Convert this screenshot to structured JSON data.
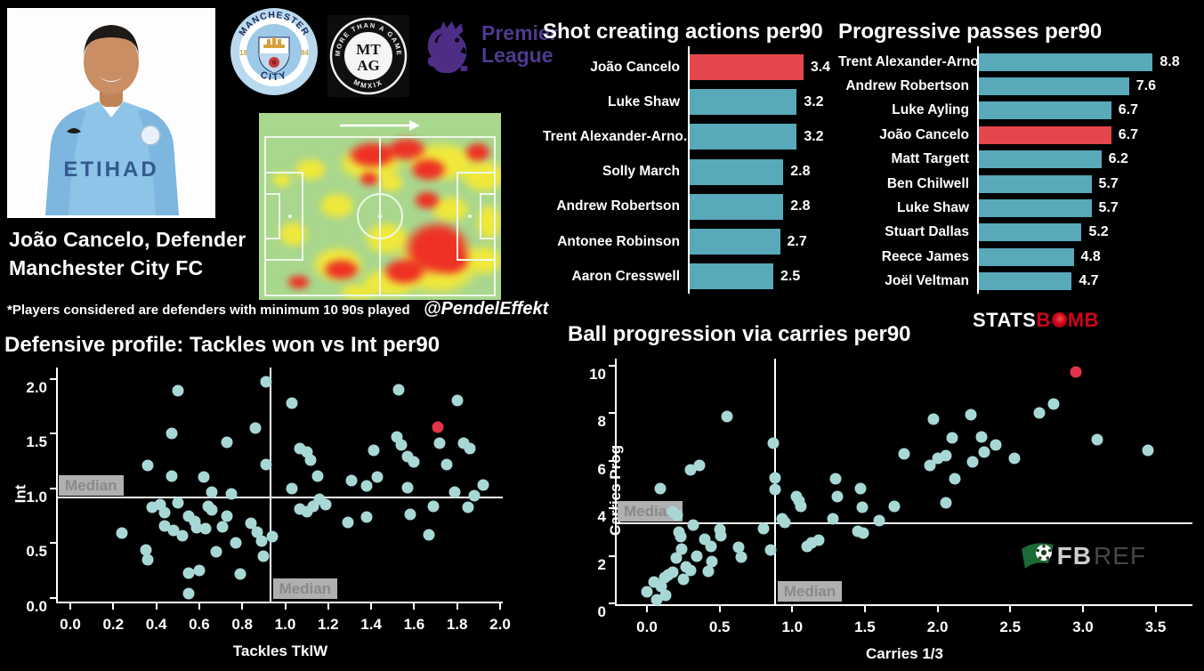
{
  "header": {
    "name": "João Cancelo, Defender",
    "team": "Manchester City FC",
    "footnote": "*Players considered are defenders with minimum 10 90s played",
    "watermark": "@PendelEffekt",
    "jersey_text": "ETIHAD"
  },
  "logos": {
    "mancity": {
      "top": "MANCHESTER",
      "bottom": "CITY",
      "year_left": "18",
      "year_right": "94"
    },
    "mtag": {
      "arc_top": "MORE THAN A GAME",
      "line1": "MT",
      "line2": "AG",
      "arc_bottom": "MMXIX"
    },
    "premier_league": {
      "line1": "Premier",
      "line2": "League"
    },
    "statsbomb": {
      "part1": "STATS",
      "part2": "B",
      "part3": "MB"
    },
    "fbref": {
      "part1": "FB",
      "part2": "REF"
    }
  },
  "colors": {
    "bar_teal": "#58a9ba",
    "bar_red": "#e4464b",
    "dot_cyan": "#a8d8d6",
    "dot_red": "#e0344a",
    "axis_white": "#ffffff",
    "median_box_bg": "#b0b0b0",
    "median_box_text": "#8a8a8a",
    "pl_purple": "#4e2d87",
    "statsbomb_red": "#d0021b",
    "fbref_green": "#1b6b35",
    "heat_green": "#a9d78e",
    "heat_yellow": "#f0e83a",
    "heat_red": "#ee3124"
  },
  "chart_data": [
    {
      "id": "sca",
      "type": "bar",
      "title": "Shot creating actions per90",
      "categories": [
        "João Cancelo",
        "Luke Shaw",
        "Trent Alexander-Arno..",
        "Solly March",
        "Andrew Robertson",
        "Antonee Robinson",
        "Aaron Cresswell"
      ],
      "values": [
        3.4,
        3.2,
        3.2,
        2.8,
        2.8,
        2.7,
        2.5
      ],
      "highlight_index": 0,
      "xlim": [
        0,
        3.55
      ]
    },
    {
      "id": "prog_passes",
      "type": "bar",
      "title": "Progressive passes per90",
      "categories": [
        "Trent Alexander-Arno..",
        "Andrew Robertson",
        "Luke Ayling",
        "João Cancelo",
        "Matt Targett",
        "Ben Chilwell",
        "Luke Shaw",
        "Stuart Dallas",
        "Reece James",
        "Joël Veltman"
      ],
      "values": [
        8.8,
        7.6,
        6.7,
        6.7,
        6.2,
        5.7,
        5.7,
        5.2,
        4.8,
        4.7
      ],
      "highlight_index": 3,
      "xlim": [
        0,
        9.0
      ]
    },
    {
      "id": "defensive",
      "type": "scatter",
      "title": "Defensive profile: Tackles won vs Int per90",
      "xlabel": "Tackles TklW",
      "ylabel": "Int",
      "xlim": [
        0,
        2.0
      ],
      "ylim": [
        0,
        2.0
      ],
      "xticks": [
        "0.0",
        "0.2",
        "0.4",
        "0.6",
        "0.8",
        "1.0",
        "1.2",
        "1.4",
        "1.6",
        "1.8",
        "2.0"
      ],
      "yticks": [
        "0.0",
        "0.5",
        "1.0",
        "1.5",
        "2.0"
      ],
      "median_x": 0.93,
      "median_y": 0.92,
      "median_label": "Median",
      "highlight": [
        1.71,
        1.56
      ],
      "points": [
        [
          0.5,
          1.89
        ],
        [
          0.91,
          1.97
        ],
        [
          1.03,
          1.78
        ],
        [
          1.53,
          1.9
        ],
        [
          1.8,
          1.8
        ],
        [
          0.47,
          1.5
        ],
        [
          0.73,
          1.42
        ],
        [
          0.86,
          1.55
        ],
        [
          0.91,
          1.22
        ],
        [
          0.36,
          1.21
        ],
        [
          0.47,
          1.11
        ],
        [
          0.62,
          1.1
        ],
        [
          0.66,
          0.97
        ],
        [
          0.75,
          0.95
        ],
        [
          0.42,
          0.85
        ],
        [
          0.38,
          0.83
        ],
        [
          0.44,
          0.78
        ],
        [
          0.5,
          0.87
        ],
        [
          0.44,
          0.66
        ],
        [
          0.48,
          0.62
        ],
        [
          0.52,
          0.57
        ],
        [
          0.55,
          0.75
        ],
        [
          0.58,
          0.7
        ],
        [
          0.59,
          0.64
        ],
        [
          0.63,
          0.63
        ],
        [
          0.64,
          0.84
        ],
        [
          0.66,
          0.8
        ],
        [
          0.68,
          0.42
        ],
        [
          0.71,
          0.65
        ],
        [
          0.73,
          0.75
        ],
        [
          0.24,
          0.59
        ],
        [
          0.35,
          0.44
        ],
        [
          0.36,
          0.35
        ],
        [
          0.55,
          0.23
        ],
        [
          0.6,
          0.25
        ],
        [
          0.55,
          0.04
        ],
        [
          0.77,
          0.5
        ],
        [
          0.79,
          0.22
        ],
        [
          0.84,
          0.68
        ],
        [
          0.87,
          0.6
        ],
        [
          0.89,
          0.52
        ],
        [
          0.9,
          0.38
        ],
        [
          0.94,
          0.56
        ],
        [
          1.07,
          1.36
        ],
        [
          1.1,
          1.33
        ],
        [
          1.12,
          1.26
        ],
        [
          1.15,
          1.11
        ],
        [
          1.41,
          1.35
        ],
        [
          1.52,
          1.47
        ],
        [
          1.54,
          1.4
        ],
        [
          1.57,
          1.29
        ],
        [
          1.6,
          1.24
        ],
        [
          1.72,
          1.41
        ],
        [
          1.75,
          1.22
        ],
        [
          1.83,
          1.41
        ],
        [
          1.86,
          1.36
        ],
        [
          1.31,
          1.07
        ],
        [
          1.38,
          1.02
        ],
        [
          1.43,
          1.1
        ],
        [
          1.57,
          1.01
        ],
        [
          1.92,
          1.03
        ],
        [
          1.03,
          1.0
        ],
        [
          1.07,
          0.81
        ],
        [
          1.1,
          0.79
        ],
        [
          1.13,
          0.84
        ],
        [
          1.16,
          0.9
        ],
        [
          1.19,
          0.85
        ],
        [
          1.29,
          0.69
        ],
        [
          1.38,
          0.74
        ],
        [
          1.58,
          0.76
        ],
        [
          1.67,
          0.58
        ],
        [
          1.69,
          0.84
        ],
        [
          1.79,
          0.97
        ],
        [
          1.85,
          0.83
        ],
        [
          1.88,
          0.93
        ]
      ]
    },
    {
      "id": "carries",
      "type": "scatter",
      "title": "Ball progression via carries per90",
      "xlabel": "Carries 1/3",
      "ylabel": "Carries Prog",
      "xlim": [
        0,
        3.5
      ],
      "ylim": [
        0,
        10
      ],
      "xticks": [
        "0.0",
        "0.5",
        "1.0",
        "1.5",
        "2.0",
        "2.5",
        "3.0",
        "3.5"
      ],
      "yticks": [
        "0",
        "2",
        "4",
        "6",
        "8",
        "10"
      ],
      "median_x": 0.88,
      "median_y": 3.37,
      "median_label": "Median",
      "highlight": [
        2.95,
        9.75
      ],
      "points": [
        [
          0.0,
          0.5
        ],
        [
          0.05,
          0.9
        ],
        [
          0.07,
          0.15
        ],
        [
          0.1,
          0.7
        ],
        [
          0.12,
          1.1
        ],
        [
          0.13,
          0.35
        ],
        [
          0.15,
          1.2
        ],
        [
          0.18,
          1.3
        ],
        [
          0.2,
          1.9
        ],
        [
          0.22,
          3.0
        ],
        [
          0.23,
          2.8
        ],
        [
          0.24,
          2.3
        ],
        [
          0.25,
          1.0
        ],
        [
          0.27,
          1.55
        ],
        [
          0.3,
          1.4
        ],
        [
          0.32,
          3.3
        ],
        [
          0.34,
          2.0
        ],
        [
          0.4,
          2.7
        ],
        [
          0.42,
          1.35
        ],
        [
          0.44,
          2.4
        ],
        [
          0.45,
          1.75
        ],
        [
          0.5,
          3.1
        ],
        [
          0.51,
          2.85
        ],
        [
          0.63,
          2.35
        ],
        [
          0.65,
          1.95
        ],
        [
          0.8,
          3.15
        ],
        [
          0.85,
          2.25
        ],
        [
          0.09,
          4.85
        ],
        [
          0.18,
          3.85
        ],
        [
          0.21,
          3.7
        ],
        [
          0.3,
          5.6
        ],
        [
          0.36,
          5.8
        ],
        [
          0.55,
          7.85
        ],
        [
          0.87,
          6.75
        ],
        [
          0.88,
          5.3
        ],
        [
          0.88,
          4.8
        ],
        [
          0.93,
          3.55
        ],
        [
          0.95,
          3.4
        ],
        [
          1.03,
          4.5
        ],
        [
          1.05,
          4.3
        ],
        [
          1.06,
          4.1
        ],
        [
          1.1,
          2.4
        ],
        [
          1.13,
          2.55
        ],
        [
          1.18,
          2.65
        ],
        [
          1.28,
          3.55
        ],
        [
          1.3,
          5.25
        ],
        [
          1.31,
          4.5
        ],
        [
          1.45,
          3.05
        ],
        [
          1.47,
          4.85
        ],
        [
          1.48,
          4.05
        ],
        [
          1.49,
          2.95
        ],
        [
          1.6,
          3.5
        ],
        [
          1.7,
          4.1
        ],
        [
          1.77,
          6.3
        ],
        [
          1.95,
          5.8
        ],
        [
          1.97,
          7.75
        ],
        [
          2.0,
          6.1
        ],
        [
          2.06,
          6.2
        ],
        [
          2.06,
          4.25
        ],
        [
          2.1,
          6.95
        ],
        [
          2.12,
          5.25
        ],
        [
          2.23,
          7.95
        ],
        [
          2.24,
          5.95
        ],
        [
          2.3,
          7.0
        ],
        [
          2.32,
          6.35
        ],
        [
          2.4,
          6.65
        ],
        [
          2.53,
          6.1
        ],
        [
          2.7,
          8.0
        ],
        [
          2.8,
          8.4
        ],
        [
          3.1,
          6.9
        ],
        [
          3.45,
          6.45
        ]
      ]
    }
  ]
}
